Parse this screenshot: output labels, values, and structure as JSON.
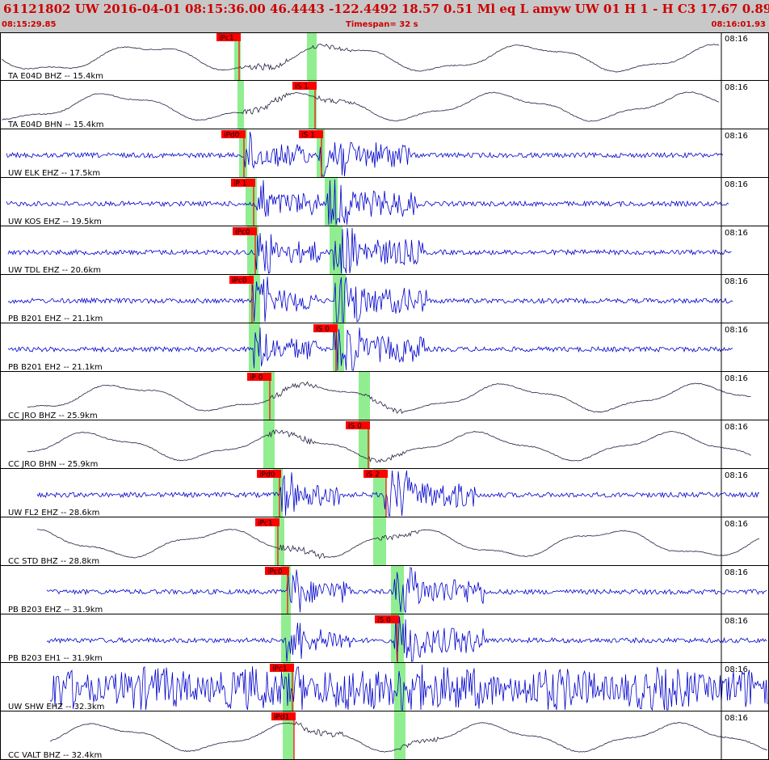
{
  "header": {
    "title": "61121802 UW 2016-04-01 08:15:36.00   46.4443 -122.4492  18.57  0.51 Ml  eq  L amyw     UW 01  H   1  -  H C3   17.67  0.89",
    "start_time": "08:15:29.85",
    "timespan": "Timespan=  32 s",
    "end_time": "08:16:01.93"
  },
  "colors": {
    "header_bg": "#c8c8c8",
    "header_text": "#cc0000",
    "pick": "#ff0000",
    "window": "#90ee90",
    "trace_black": "#202040",
    "trace_blue": "#0000cc"
  },
  "traces": [
    {
      "label": "TA E04D BHZ -- 15.4km",
      "time": "08:16",
      "p_pick": "iPc1",
      "s_pick": null,
      "color": "black",
      "kind": "long"
    },
    {
      "label": "TA E04D BHN -- 15.4km",
      "time": "08:16",
      "p_pick": null,
      "s_pick": "iS 1",
      "color": "black",
      "kind": "long"
    },
    {
      "label": "UW ELK EHZ -- 17.5km",
      "time": "08:16",
      "p_pick": "iPd0",
      "s_pick": "iS 1",
      "color": "blue",
      "kind": "short"
    },
    {
      "label": "UW KOS EHZ -- 19.5km",
      "time": "08:16",
      "p_pick": "iP 1",
      "s_pick": null,
      "color": "blue",
      "kind": "short"
    },
    {
      "label": "UW TDL EHZ -- 20.6km",
      "time": "08:16",
      "p_pick": "iPc0",
      "s_pick": null,
      "color": "blue",
      "kind": "short"
    },
    {
      "label": "PB B201 EHZ -- 21.1km",
      "time": "08:16",
      "p_pick": "iPc0",
      "s_pick": null,
      "color": "blue",
      "kind": "short"
    },
    {
      "label": "PB B201 EH2 -- 21.1km",
      "time": "08:16",
      "p_pick": null,
      "s_pick": "iS 0",
      "color": "blue",
      "kind": "short"
    },
    {
      "label": "CC JRO BHZ -- 25.9km",
      "time": "08:16",
      "p_pick": "iP 0",
      "s_pick": null,
      "color": "black",
      "kind": "long"
    },
    {
      "label": "CC JRO BHN -- 25.9km",
      "time": "08:16",
      "p_pick": null,
      "s_pick": "iS 0",
      "color": "black",
      "kind": "long"
    },
    {
      "label": "UW FL2 EHZ -- 28.6km",
      "time": "08:16",
      "p_pick": "iPd0",
      "s_pick": "iS 2",
      "color": "blue",
      "kind": "short"
    },
    {
      "label": "CC STD BHZ -- 28.8km",
      "time": "08:16",
      "p_pick": "iPc1",
      "s_pick": null,
      "color": "black",
      "kind": "long"
    },
    {
      "label": "PB B203 EHZ -- 31.9km",
      "time": "08:16",
      "p_pick": "iPc0",
      "s_pick": null,
      "color": "blue",
      "kind": "short"
    },
    {
      "label": "PB B203 EH1 -- 31.9km",
      "time": "08:16",
      "p_pick": null,
      "s_pick": "iS 0",
      "color": "blue",
      "kind": "short"
    },
    {
      "label": "UW SHW EHZ -- 32.3km",
      "time": "08:16",
      "p_pick": "iPc1",
      "s_pick": null,
      "color": "blue",
      "kind": "short"
    },
    {
      "label": "CC VALT BHZ -- 32.4km",
      "time": "08:16",
      "p_pick": "iPd1",
      "s_pick": null,
      "color": "black",
      "kind": "long"
    }
  ]
}
